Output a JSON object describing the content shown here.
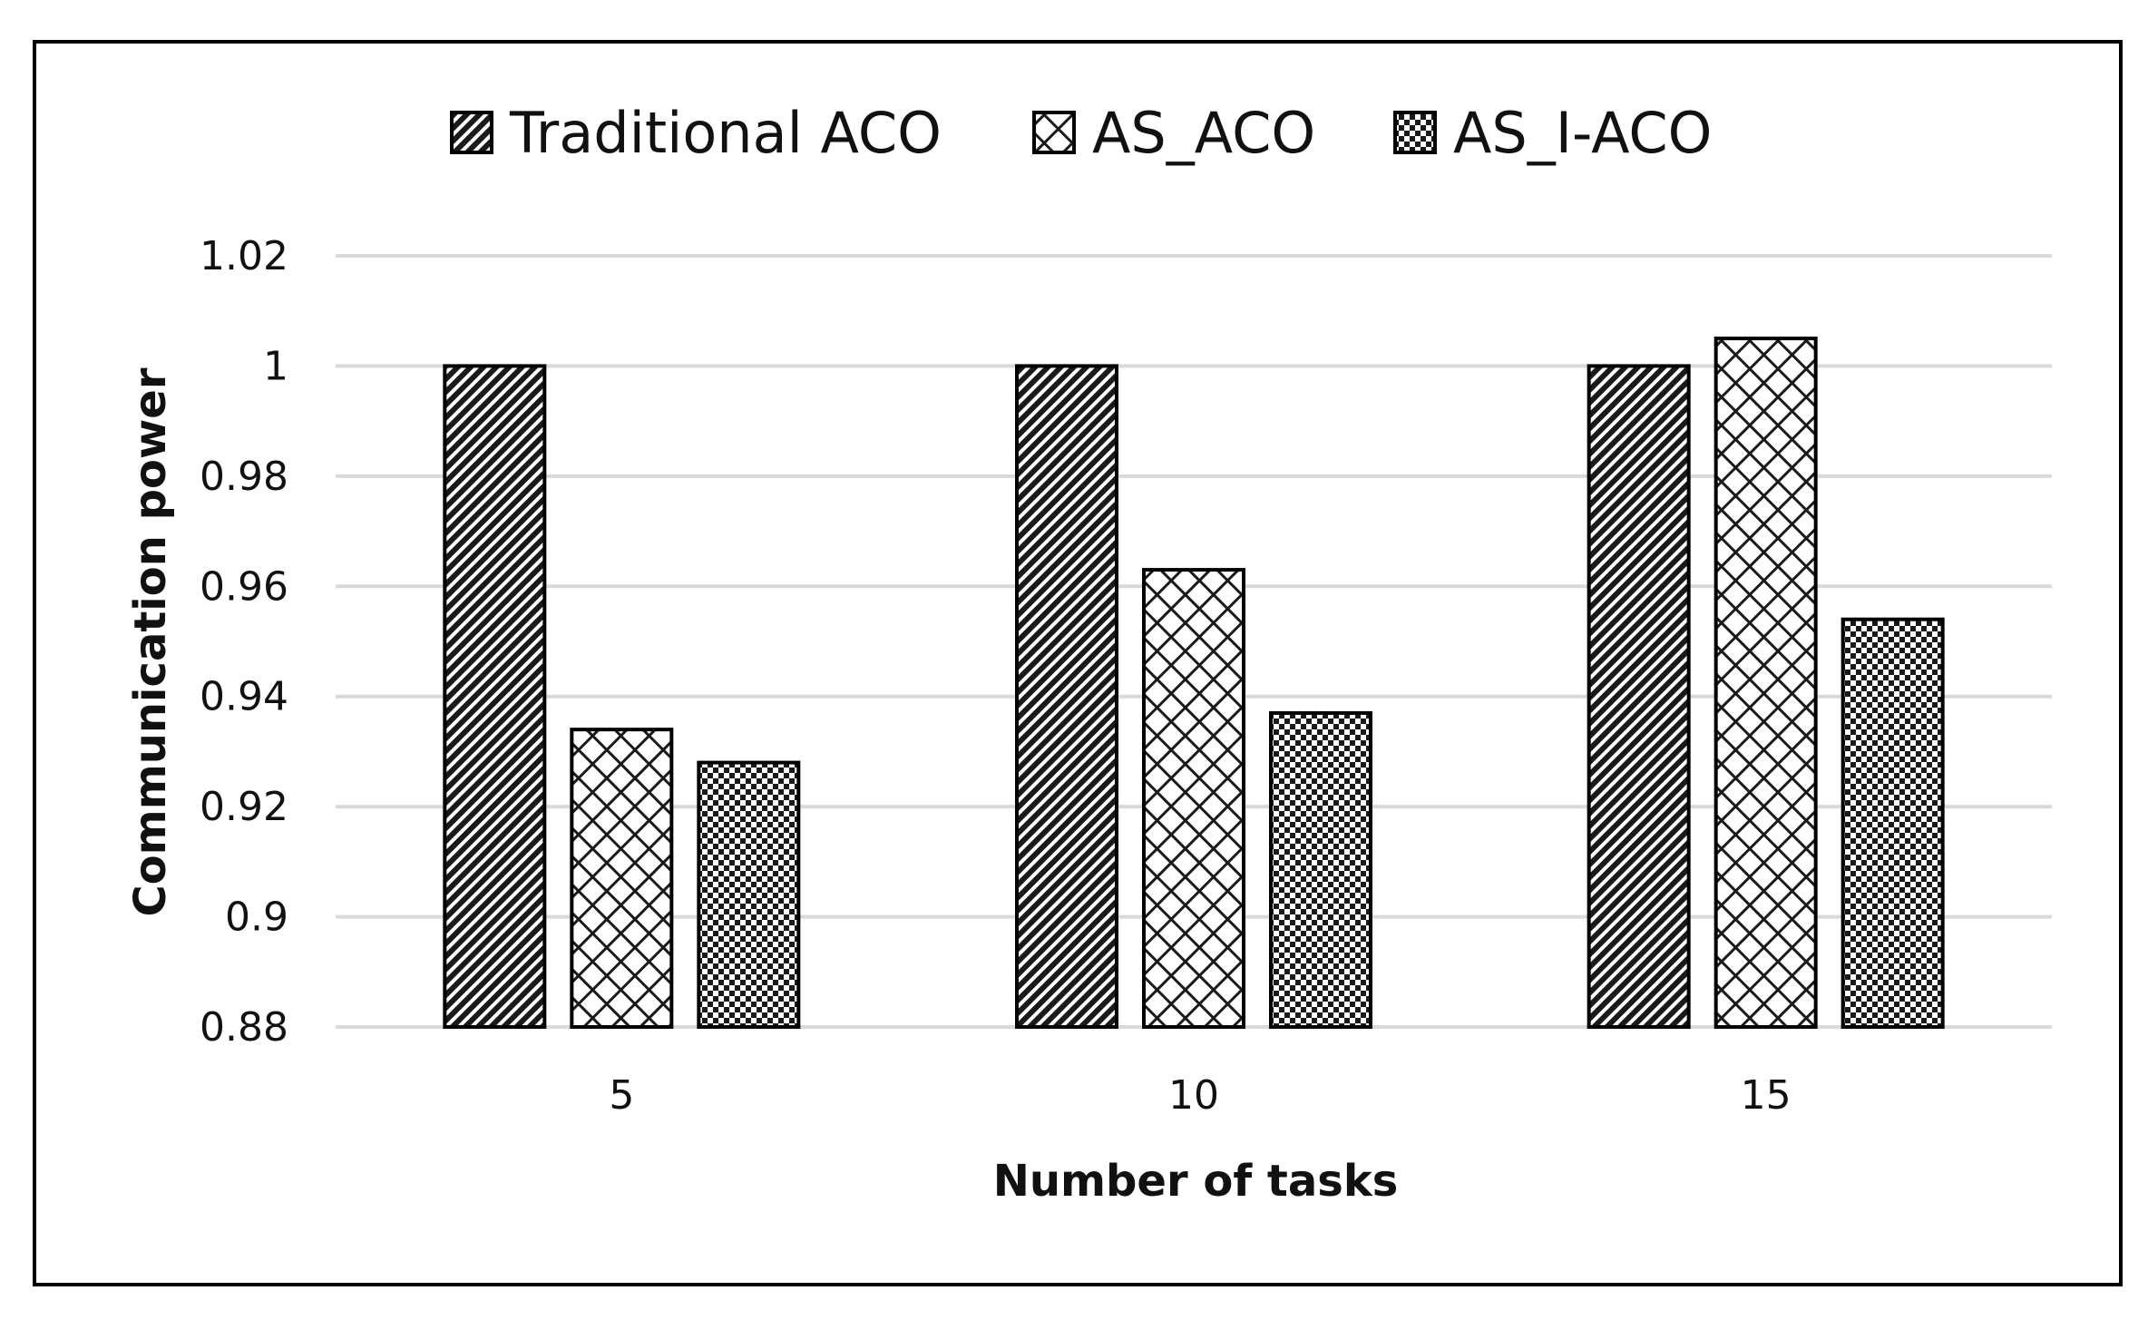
{
  "chart_data": {
    "type": "bar",
    "title": "",
    "xlabel": "Number of tasks",
    "ylabel": "Communication power",
    "categories": [
      "5",
      "10",
      "15"
    ],
    "ylim": [
      0.88,
      1.02
    ],
    "yticks": [
      0.88,
      0.9,
      0.92,
      0.94,
      0.96,
      0.98,
      1,
      1.02
    ],
    "ytick_labels": [
      "0.88",
      "0.9",
      "0.92",
      "0.94",
      "0.96",
      "0.98",
      "1",
      "1.02"
    ],
    "grid": true,
    "legend_position": "top",
    "series": [
      {
        "name": "Traditional ACO",
        "pattern": "diagonal-hatch",
        "values": [
          1.0,
          1.0,
          1.0
        ]
      },
      {
        "name": "AS_ACO",
        "pattern": "crosshatch",
        "values": [
          0.934,
          0.963,
          1.005
        ]
      },
      {
        "name": "AS_I-ACO",
        "pattern": "checker",
        "values": [
          0.928,
          0.937,
          0.954
        ]
      }
    ]
  }
}
